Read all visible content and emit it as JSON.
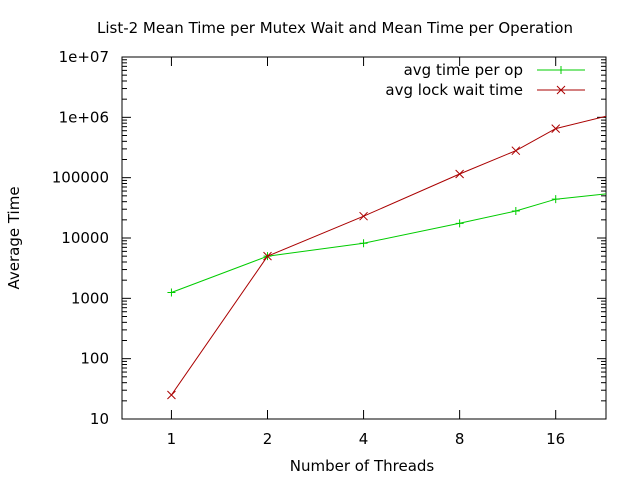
{
  "chart_data": {
    "type": "line",
    "title": "List-2 Mean Time per Mutex Wait and Mean Time per Operation",
    "xlabel": "Number of Threads",
    "ylabel": "Average Time",
    "x_scale": "log2",
    "y_scale": "log10",
    "xlim": [
      0.7,
      23
    ],
    "ylim": [
      10,
      10000000
    ],
    "x_ticks": [
      1,
      2,
      4,
      8,
      16
    ],
    "x_tick_labels": [
      "1",
      "2",
      "4",
      "8",
      "16"
    ],
    "y_ticks": [
      10,
      100,
      1000,
      10000,
      100000,
      1000000,
      10000000
    ],
    "y_tick_labels": [
      "10",
      "100",
      "1000",
      "10000",
      "100000",
      "1e+06",
      "1e+07"
    ],
    "grid": false,
    "legend_position": "top-right",
    "series": [
      {
        "name": "avg time per op",
        "color": "#00cc00",
        "marker": "plus",
        "x": [
          1,
          2,
          4,
          8,
          12,
          16,
          24
        ],
        "y": [
          1250,
          5000,
          8200,
          17500,
          28000,
          44000,
          55000
        ]
      },
      {
        "name": "avg lock wait time",
        "color": "#aa0000",
        "marker": "cross",
        "x": [
          1,
          2,
          4,
          8,
          12,
          16,
          24
        ],
        "y": [
          25,
          5000,
          23000,
          115000,
          280000,
          650000,
          1100000
        ]
      }
    ]
  }
}
